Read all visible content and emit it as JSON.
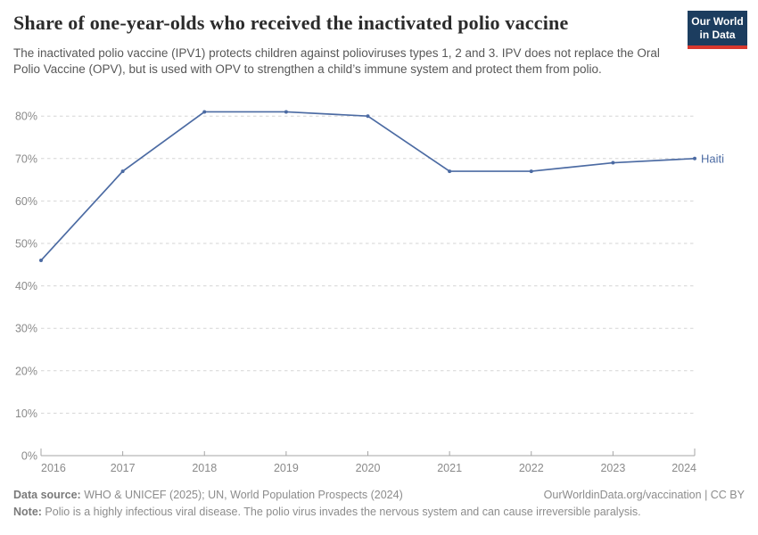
{
  "header": {
    "title": "Share of one-year-olds who received the inactivated polio vaccine",
    "subtitle": "The inactivated polio vaccine (IPV1) protects children against polioviruses types 1, 2 and 3. IPV does not replace the Oral Polio Vaccine (OPV), but is used with OPV to strengthen a child’s immune system and protect them from polio.",
    "logo": {
      "line1": "Our World",
      "line2": "in Data",
      "bg_color": "#1c3d5f",
      "accent_color": "#d8382e"
    }
  },
  "chart_data": {
    "type": "line",
    "title": "Share of one-year-olds who received the inactivated polio vaccine",
    "x": [
      2016,
      2017,
      2018,
      2019,
      2020,
      2021,
      2022,
      2023,
      2024
    ],
    "series": [
      {
        "name": "Haiti",
        "values": [
          46,
          67,
          81,
          81,
          80,
          67,
          67,
          69,
          70
        ],
        "color": "#4c6ba3"
      }
    ],
    "xlabel": "",
    "ylabel": "",
    "ylim": [
      0,
      85
    ],
    "yticks": [
      0,
      10,
      20,
      30,
      40,
      50,
      60,
      70,
      80
    ],
    "ytick_suffix": "%",
    "grid": "horizontal-dashed",
    "legend_position": "end-of-line-label",
    "gridline_color": "#d6d6d6",
    "axis_color": "#a5a5a5",
    "tick_label_color": "#8a8a8a"
  },
  "footer": {
    "datasource_label": "Data source:",
    "datasource_text": " WHO & UNICEF (2025); UN, World Population Prospects (2024)",
    "rights": "OurWorldinData.org/vaccination | CC BY",
    "note_label": "Note:",
    "note_text": " Polio is a highly infectious viral disease. The polio virus invades the nervous system and can cause irreversible paralysis."
  }
}
